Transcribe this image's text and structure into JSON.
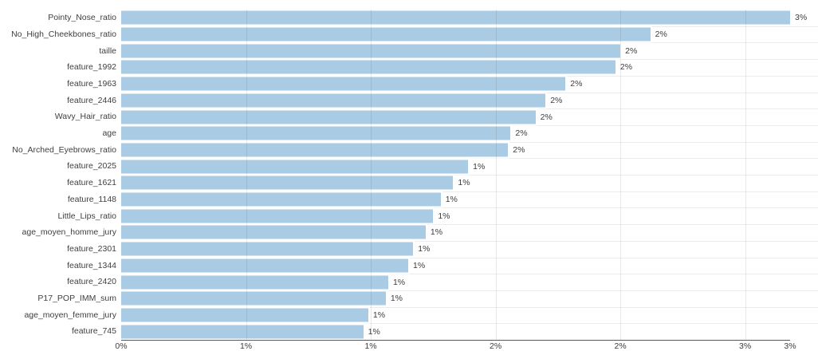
{
  "chart_data": {
    "type": "bar",
    "orientation": "horizontal",
    "title": "",
    "xlabel": "",
    "ylabel": "",
    "xlim": [
      0,
      2.68
    ],
    "grid": "on",
    "legend": "none",
    "bar_color": "#a9cbe3",
    "categories": [
      "Pointy_Nose_ratio",
      "No_High_Cheekbones_ratio",
      "taille",
      "feature_1992",
      "feature_1963",
      "feature_2446",
      "Wavy_Hair_ratio",
      "age",
      "No_Arched_Eyebrows_ratio",
      "feature_2025",
      "feature_1621",
      "feature_1148",
      "Little_Lips_ratio",
      "age_moyen_homme_jury",
      "feature_2301",
      "feature_1344",
      "feature_2420",
      "P17_POP_IMM_sum",
      "age_moyen_femme_jury",
      "feature_745"
    ],
    "values": [
      2.68,
      2.12,
      2.0,
      1.98,
      1.78,
      1.7,
      1.66,
      1.56,
      1.55,
      1.39,
      1.33,
      1.28,
      1.25,
      1.22,
      1.17,
      1.15,
      1.07,
      1.06,
      0.99,
      0.97
    ],
    "value_labels": [
      "3%",
      "2%",
      "2%",
      "2%",
      "2%",
      "2%",
      "2%",
      "2%",
      "2%",
      "1%",
      "1%",
      "1%",
      "1%",
      "1%",
      "1%",
      "1%",
      "1%",
      "1%",
      "1%",
      "1%"
    ]
  },
  "x_axis": {
    "ticks": [
      {
        "value": 0,
        "label": "0%"
      },
      {
        "value": 0.5,
        "label": "1%"
      },
      {
        "value": 1.0,
        "label": "1%"
      },
      {
        "value": 1.5,
        "label": "2%"
      },
      {
        "value": 2.0,
        "label": "2%"
      },
      {
        "value": 2.5,
        "label": "3%"
      },
      {
        "value": 2.68,
        "label": "3%"
      }
    ],
    "gridline_values": [
      0.5,
      1.0,
      1.5,
      2.0,
      2.5
    ]
  },
  "colors": {
    "bar": "#a9cbe3",
    "axis_line": "#595959",
    "text": "#404040",
    "hgrid": "#ececec"
  }
}
